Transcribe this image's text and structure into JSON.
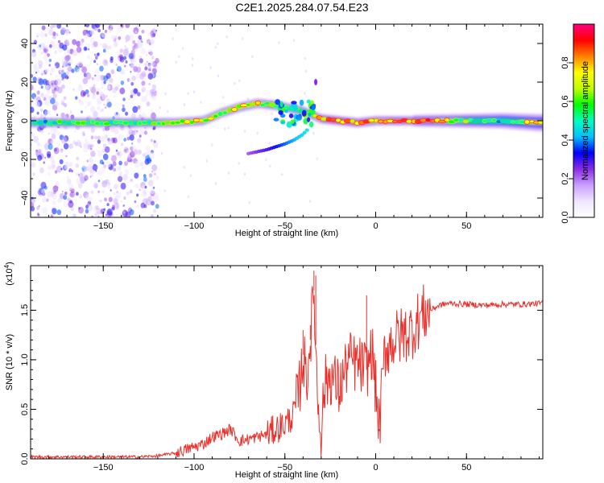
{
  "title": "C2E1.2025.284.07.54.E23",
  "chart_data": [
    {
      "type": "heatmap",
      "xlabel": "Height of straight line (km)",
      "ylabel": "Frequency (Hz)",
      "xlim": [
        -190,
        92
      ],
      "ylim": [
        -50,
        50
      ],
      "xticks": [
        -150,
        -100,
        -50,
        0,
        50
      ],
      "yticks": [
        -40,
        -20,
        0,
        20,
        40
      ],
      "colorbar": {
        "label": "Normalized spectral amplitude",
        "range": [
          0,
          1
        ],
        "ticks": [
          "0.0",
          "0.2",
          "0.4",
          "0.6",
          "0.8"
        ],
        "colors": [
          "#ffffff",
          "#f0e6ff",
          "#c8a0ff",
          "#8a2be2",
          "#0000ff",
          "#00c0ff",
          "#00ffc0",
          "#00ff00",
          "#c0ff00",
          "#ffff00",
          "#ff8000",
          "#ff0000",
          "#ff0080"
        ]
      },
      "ridge": {
        "x": [
          -190,
          -160,
          -130,
          -110,
          -95,
          -85,
          -75,
          -65,
          -55,
          -50,
          -45,
          -40,
          -35,
          -30,
          -20,
          -10,
          0,
          10,
          30,
          50,
          70,
          90
        ],
        "freq": [
          -1,
          -1,
          -1,
          -1,
          0,
          4,
          7,
          9,
          8,
          7,
          6,
          5,
          3,
          1,
          0,
          -1,
          0,
          0,
          0,
          0,
          0,
          -1
        ],
        "amplitude": [
          0.45,
          0.6,
          0.5,
          0.75,
          0.7,
          0.7,
          0.72,
          0.75,
          0.55,
          0.5,
          0.5,
          0.55,
          0.6,
          0.85,
          0.9,
          0.85,
          0.8,
          0.85,
          0.85,
          0.6,
          0.45,
          0.8
        ]
      },
      "lower_branch": {
        "x": [
          -70,
          -60,
          -50,
          -45,
          -40,
          -37
        ],
        "freq": [
          -17,
          -15,
          -12,
          -10,
          -7,
          -4
        ]
      }
    },
    {
      "type": "line",
      "xlabel": "Height of straight line (km)",
      "ylabel": "SNR (10 * v/v)",
      "yscale_label": "(x10",
      "yscale_exp": "4",
      "xlim": [
        -190,
        92
      ],
      "ylim": [
        0,
        1.95
      ],
      "xticks": [
        -150,
        -100,
        -50,
        0,
        50
      ],
      "yticks": [
        "0.0",
        "0.5",
        "1.0",
        "1.5"
      ],
      "color": "#e8302a",
      "series": {
        "x": [
          -190,
          -170,
          -150,
          -130,
          -120,
          -110,
          -100,
          -95,
          -90,
          -85,
          -80,
          -75,
          -70,
          -65,
          -60,
          -55,
          -50,
          -45,
          -42,
          -40,
          -38,
          -36,
          -34,
          -32,
          -30,
          -28,
          -25,
          -20,
          -15,
          -10,
          -5,
          -2,
          0,
          2,
          5,
          10,
          15,
          20,
          25,
          30,
          35,
          40,
          50,
          60,
          70,
          80,
          92
        ],
        "y": [
          0.02,
          0.02,
          0.02,
          0.02,
          0.03,
          0.06,
          0.12,
          0.15,
          0.22,
          0.25,
          0.3,
          0.18,
          0.2,
          0.22,
          0.25,
          0.3,
          0.35,
          0.45,
          0.7,
          1.05,
          0.8,
          1.2,
          1.7,
          0.6,
          0.3,
          0.75,
          0.85,
          0.7,
          1.0,
          0.95,
          0.9,
          1.1,
          0.7,
          0.3,
          1.1,
          1.2,
          1.25,
          1.3,
          1.45,
          1.5,
          1.55,
          1.57,
          1.56,
          1.55,
          1.56,
          1.56,
          1.57
        ]
      },
      "spikes": [
        {
          "x": -40,
          "y": 1.3
        },
        {
          "x": -36,
          "y": 1.35
        },
        {
          "x": -34,
          "y": 1.9
        },
        {
          "x": -33,
          "y": 1.85
        },
        {
          "x": -5,
          "y": 1.65
        },
        {
          "x": 2,
          "y": 0.28
        }
      ]
    }
  ]
}
